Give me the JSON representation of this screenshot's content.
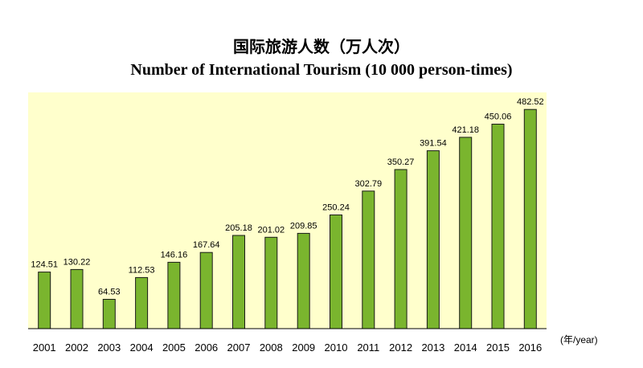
{
  "chart_data": {
    "type": "bar",
    "title": "国际旅游人数（万人次）",
    "subtitle": "Number of International Tourism (10 000 person-times)",
    "xlabel": "(年/year)",
    "ylabel": "",
    "categories": [
      "2001",
      "2002",
      "2003",
      "2004",
      "2005",
      "2006",
      "2007",
      "2008",
      "2009",
      "2010",
      "2011",
      "2012",
      "2013",
      "2014",
      "2015",
      "2016"
    ],
    "values": [
      124.51,
      130.22,
      64.53,
      112.53,
      146.16,
      167.64,
      205.18,
      201.02,
      209.85,
      250.24,
      302.79,
      350.27,
      391.54,
      421.18,
      450.06,
      482.52
    ],
    "value_labels": [
      "124.51",
      "130.22",
      "64.53",
      "112.53",
      "146.16",
      "167.64",
      "205.18",
      "201.02",
      "209.85",
      "250.24",
      "302.79",
      "350.27",
      "391.54",
      "421.18",
      "450.06",
      "482.52"
    ],
    "ylim": [
      0,
      520
    ],
    "grid": false,
    "colors": {
      "bar_fill": "#7ab52e",
      "bar_stroke": "#1a1a1a",
      "plot_background": "#ffffcc",
      "axis": "#000000"
    }
  }
}
